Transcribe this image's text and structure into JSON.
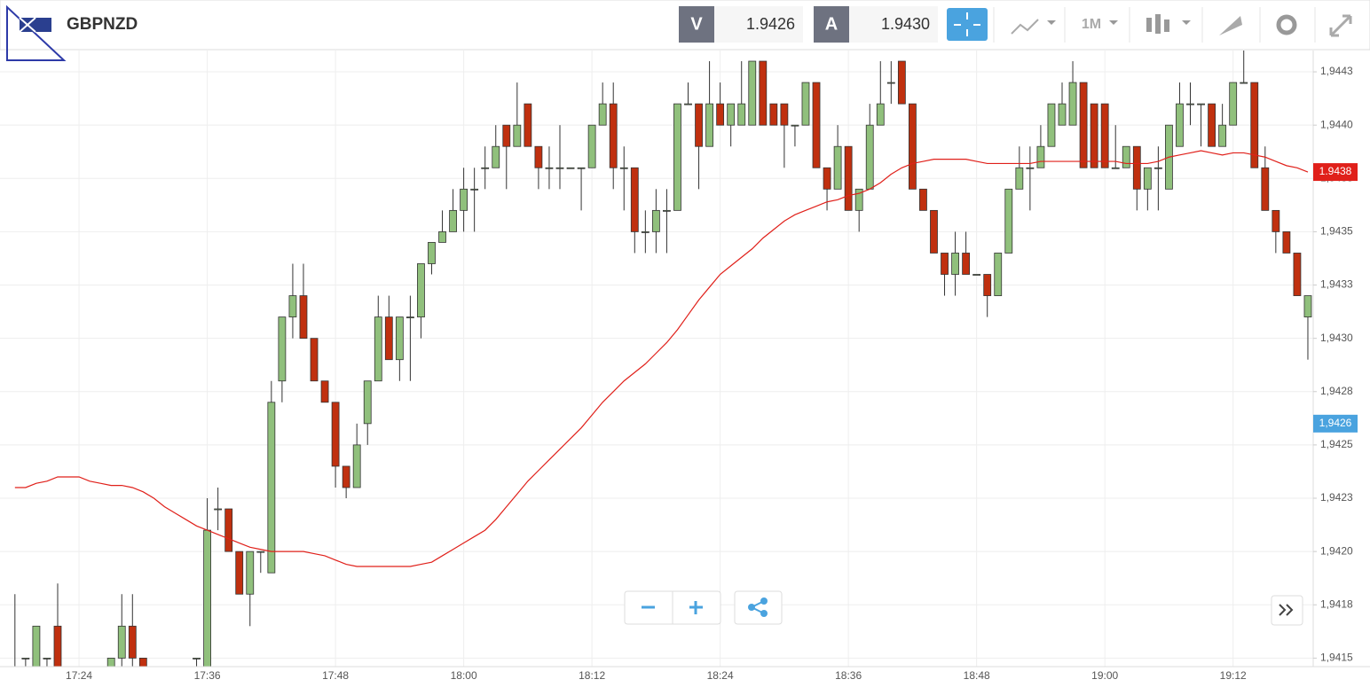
{
  "header": {
    "symbol": "GBPNZD",
    "bid_label": "V",
    "bid": "1.9426",
    "ask_label": "A",
    "ask": "1.9430",
    "timeframe": "1M"
  },
  "chart_data": {
    "type": "candlestick",
    "categories": [
      null,
      null,
      null,
      null,
      null,
      null,
      "17:24",
      null,
      null,
      null,
      null,
      null,
      null,
      null,
      null,
      null,
      null,
      null,
      "17:36",
      null,
      null,
      null,
      null,
      null,
      null,
      null,
      null,
      null,
      null,
      null,
      "17:48",
      null,
      null,
      null,
      null,
      null,
      null,
      null,
      null,
      null,
      null,
      null,
      "18:00",
      null,
      null,
      null,
      null,
      null,
      null,
      null,
      null,
      null,
      null,
      null,
      "18:12",
      null,
      null,
      null,
      null,
      null,
      null,
      null,
      null,
      null,
      null,
      null,
      "18:24",
      null,
      null,
      null,
      null,
      null,
      null,
      null,
      null,
      null,
      null,
      null,
      "18:36",
      null,
      null,
      null,
      null,
      null,
      null,
      null,
      null,
      null,
      null,
      null,
      "18:48",
      null,
      null,
      null,
      null,
      null,
      null,
      null,
      null,
      null,
      null,
      null,
      "19:00",
      null,
      null,
      null,
      null,
      null,
      null,
      null,
      null,
      null,
      null,
      null,
      "19:12",
      null,
      null,
      null,
      null,
      null,
      null,
      null
    ],
    "open": [
      1.94145,
      1.9415,
      1.94145,
      1.9415,
      1.94165,
      null,
      null,
      null,
      null,
      1.94145,
      1.9415,
      1.94165,
      1.9415,
      null,
      null,
      null,
      null,
      1.9415,
      1.9414,
      1.9422,
      1.9422,
      1.942,
      1.9418,
      1.942,
      1.9419,
      1.9428,
      1.9431,
      1.9432,
      1.943,
      1.9428,
      1.9427,
      1.9424,
      1.9423,
      1.9426,
      1.9428,
      1.9431,
      1.9429,
      1.9431,
      1.9431,
      1.94335,
      1.94345,
      1.9435,
      1.9436,
      1.9437,
      1.9438,
      1.9438,
      1.944,
      1.9439,
      1.9441,
      1.9439,
      1.9438,
      1.9438,
      1.9438,
      1.9438,
      1.9438,
      1.944,
      1.9441,
      1.9438,
      1.9438,
      1.9435,
      1.9435,
      1.9436,
      1.9436,
      1.9441,
      1.9441,
      1.9439,
      1.9441,
      1.944,
      1.944,
      1.944,
      1.9443,
      1.9441,
      1.9441,
      1.944,
      1.944,
      1.9442,
      1.9438,
      1.9437,
      1.9439,
      1.9436,
      1.9437,
      1.944,
      1.9442,
      1.9443,
      1.9441,
      1.9437,
      1.9436,
      1.9434,
      1.9433,
      1.9434,
      1.9433,
      1.9433,
      1.9432,
      1.9434,
      1.9437,
      1.9438,
      1.9438,
      1.9439,
      1.944,
      1.944,
      1.9442,
      1.9441,
      1.9441,
      1.9438,
      1.9438,
      1.9439,
      1.9437,
      1.9438,
      1.9437,
      1.9439,
      1.9441,
      1.9441,
      1.9441,
      1.9439,
      1.944,
      1.9442,
      1.9442,
      1.9438,
      1.9436,
      1.9435,
      1.9434,
      1.9431
    ],
    "high": [
      1.9418,
      1.9415,
      1.94165,
      1.9415,
      1.94185,
      null,
      null,
      null,
      null,
      1.9415,
      1.9418,
      1.9418,
      1.9415,
      null,
      null,
      null,
      null,
      1.9415,
      1.94225,
      1.9423,
      1.9422,
      1.942,
      1.942,
      1.942,
      1.9428,
      1.9431,
      1.94335,
      1.94335,
      1.943,
      1.9428,
      1.9427,
      1.9424,
      1.9426,
      1.9428,
      1.9432,
      1.9432,
      1.9431,
      1.9432,
      1.94335,
      1.94345,
      1.9436,
      1.9437,
      1.9438,
      1.9438,
      1.9439,
      1.944,
      1.944,
      1.9442,
      1.9441,
      1.9439,
      1.9439,
      1.944,
      1.9438,
      1.9438,
      1.944,
      1.9442,
      1.9442,
      1.9439,
      1.9438,
      1.9436,
      1.9437,
      1.9437,
      1.9441,
      1.9442,
      1.9441,
      1.9443,
      1.9442,
      1.9441,
      1.9443,
      1.9443,
      1.9443,
      1.9441,
      1.9441,
      1.944,
      1.9442,
      1.9442,
      1.9438,
      1.944,
      1.9439,
      1.9437,
      1.9441,
      1.9443,
      1.9443,
      1.9443,
      1.9441,
      1.9437,
      1.9436,
      1.9434,
      1.9435,
      1.9435,
      1.9433,
      1.9433,
      1.9434,
      1.9437,
      1.9439,
      1.9439,
      1.944,
      1.9441,
      1.9442,
      1.9443,
      1.9442,
      1.9441,
      1.9441,
      1.944,
      1.9439,
      1.9439,
      1.9438,
      1.9439,
      1.944,
      1.9442,
      1.9442,
      1.9441,
      1.9441,
      1.9441,
      1.9442,
      1.94435,
      1.9442,
      1.9439,
      1.9436,
      1.9435,
      1.9434,
      1.9432
    ],
    "low": [
      1.9414,
      1.94145,
      1.9414,
      1.94145,
      1.94135,
      null,
      null,
      null,
      null,
      1.9414,
      1.94145,
      1.94145,
      1.9414,
      null,
      null,
      null,
      null,
      1.9414,
      1.9414,
      1.9421,
      1.942,
      1.9418,
      1.94165,
      1.9419,
      1.9419,
      1.9427,
      1.943,
      1.943,
      1.9428,
      1.9427,
      1.9423,
      1.94225,
      1.9423,
      1.9425,
      1.9428,
      1.9429,
      1.9428,
      1.9428,
      1.943,
      1.9433,
      1.94345,
      1.9435,
      1.9435,
      1.9435,
      1.9437,
      1.9438,
      1.9437,
      1.9439,
      1.9439,
      1.9437,
      1.9437,
      1.9437,
      1.9438,
      1.9436,
      1.9438,
      1.944,
      1.9437,
      1.9436,
      1.9434,
      1.9434,
      1.9434,
      1.9434,
      1.9436,
      1.9441,
      1.9437,
      1.9439,
      1.944,
      1.9439,
      1.944,
      1.944,
      1.944,
      1.944,
      1.9438,
      1.9439,
      1.944,
      1.9438,
      1.9436,
      1.9437,
      1.9436,
      1.9435,
      1.9437,
      1.944,
      1.9441,
      1.9441,
      1.9437,
      1.9436,
      1.9434,
      1.9432,
      1.9432,
      1.9433,
      1.9433,
      1.9431,
      1.9432,
      1.9434,
      1.9437,
      1.9436,
      1.9438,
      1.9439,
      1.944,
      1.944,
      1.9438,
      1.9438,
      1.9438,
      1.9438,
      1.9438,
      1.9436,
      1.9436,
      1.9436,
      1.9437,
      1.9439,
      1.944,
      1.9439,
      1.9439,
      1.9439,
      1.944,
      1.9442,
      1.9438,
      1.9436,
      1.9434,
      1.9434,
      1.9432,
      1.9429
    ],
    "close": [
      1.94145,
      1.9415,
      1.94165,
      1.9415,
      1.9414,
      null,
      null,
      null,
      null,
      1.9415,
      1.94165,
      1.9415,
      1.94145,
      null,
      null,
      null,
      null,
      1.9415,
      1.9421,
      1.9422,
      1.942,
      1.9418,
      1.942,
      1.942,
      1.9427,
      1.9431,
      1.9432,
      1.943,
      1.9428,
      1.9427,
      1.9424,
      1.9423,
      1.9425,
      1.9428,
      1.9431,
      1.9429,
      1.9431,
      1.9431,
      1.94335,
      1.94345,
      1.9435,
      1.9436,
      1.9437,
      1.9437,
      1.9438,
      1.9439,
      1.9439,
      1.944,
      1.9439,
      1.9438,
      1.9438,
      1.9438,
      1.9438,
      1.9438,
      1.944,
      1.9441,
      1.9438,
      1.9438,
      1.9435,
      1.9435,
      1.9436,
      1.9436,
      1.9441,
      1.9441,
      1.9439,
      1.9441,
      1.944,
      1.9441,
      1.9441,
      1.9443,
      1.944,
      1.944,
      1.944,
      1.944,
      1.9442,
      1.9438,
      1.9437,
      1.9439,
      1.9436,
      1.9437,
      1.944,
      1.9441,
      1.9442,
      1.9441,
      1.9437,
      1.9436,
      1.9434,
      1.9433,
      1.9434,
      1.9433,
      1.9433,
      1.9432,
      1.9434,
      1.9437,
      1.9438,
      1.9438,
      1.9439,
      1.9441,
      1.9441,
      1.9442,
      1.9438,
      1.9438,
      1.9438,
      1.9438,
      1.9439,
      1.9437,
      1.9438,
      1.9438,
      1.944,
      1.9441,
      1.9441,
      1.9441,
      1.9439,
      1.944,
      1.9442,
      1.9442,
      1.9438,
      1.9436,
      1.9435,
      1.9434,
      1.9432,
      1.9432
    ],
    "up_color": "#90c07c",
    "down_color": "#c0300f",
    "ma": {
      "color": "#e0201a",
      "values": [
        1.9423,
        1.9423,
        1.94232,
        1.94233,
        1.94235,
        1.94235,
        1.94235,
        1.94233,
        1.94232,
        1.94231,
        1.94231,
        1.9423,
        1.94228,
        1.94225,
        1.94221,
        1.94218,
        1.94215,
        1.94212,
        1.9421,
        1.94208,
        1.94206,
        1.94204,
        1.94202,
        1.94201,
        1.942,
        1.942,
        1.942,
        1.942,
        1.94199,
        1.94198,
        1.94196,
        1.94194,
        1.94193,
        1.94193,
        1.94193,
        1.94193,
        1.94193,
        1.94193,
        1.94194,
        1.94195,
        1.94198,
        1.94201,
        1.94204,
        1.94207,
        1.9421,
        1.94215,
        1.94221,
        1.94227,
        1.94233,
        1.94238,
        1.94243,
        1.94248,
        1.94253,
        1.94258,
        1.94264,
        1.9427,
        1.94275,
        1.9428,
        1.94284,
        1.94288,
        1.94293,
        1.94298,
        1.94304,
        1.94311,
        1.94318,
        1.94324,
        1.9433,
        1.94334,
        1.94338,
        1.94342,
        1.94347,
        1.94351,
        1.94355,
        1.94358,
        1.9436,
        1.94362,
        1.94364,
        1.94365,
        1.94367,
        1.94368,
        1.9437,
        1.94373,
        1.94377,
        1.9438,
        1.94382,
        1.94383,
        1.94384,
        1.94384,
        1.94384,
        1.94384,
        1.94383,
        1.94382,
        1.94382,
        1.94382,
        1.94382,
        1.94382,
        1.94383,
        1.94383,
        1.94383,
        1.94383,
        1.94383,
        1.94383,
        1.94383,
        1.94383,
        1.94382,
        1.94382,
        1.94382,
        1.94383,
        1.94385,
        1.94386,
        1.94387,
        1.94388,
        1.94387,
        1.94386,
        1.94387,
        1.94387,
        1.94386,
        1.94385,
        1.94383,
        1.94381,
        1.9438,
        1.94378
      ],
      "label": "1.9438"
    },
    "current_price": {
      "value": 1.9426,
      "label": "1,9426"
    },
    "ylim": [
      1.94146,
      1.94435
    ],
    "yticks": [
      {
        "value": 1.94425,
        "label": "1,9443"
      },
      {
        "value": 1.944,
        "label": "1,9440"
      },
      {
        "value": 1.94375,
        "label": "1,9438"
      },
      {
        "value": 1.9435,
        "label": "1,9435"
      },
      {
        "value": 1.94325,
        "label": "1,9433"
      },
      {
        "value": 1.943,
        "label": "1,9430"
      },
      {
        "value": 1.94275,
        "label": "1,9428"
      },
      {
        "value": 1.9425,
        "label": "1,9425"
      },
      {
        "value": 1.94225,
        "label": "1,9423"
      },
      {
        "value": 1.942,
        "label": "1,9420"
      },
      {
        "value": 1.94175,
        "label": "1,9418"
      },
      {
        "value": 1.9415,
        "label": "1,9415"
      }
    ],
    "grid": true
  }
}
